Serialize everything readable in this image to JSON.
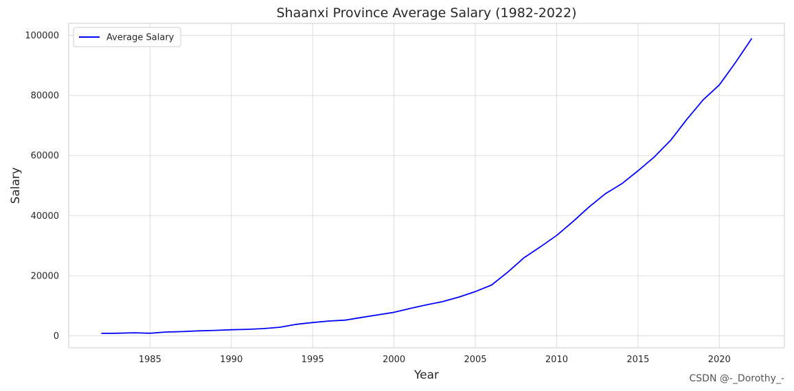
{
  "chart_data": {
    "type": "line",
    "title": "Shaanxi Province Average Salary (1982-2022)",
    "xlabel": "Year",
    "ylabel": "Salary",
    "xlim": [
      1980.0,
      2024.0
    ],
    "ylim": [
      -4000,
      104000
    ],
    "xticks": [
      1985,
      1990,
      1995,
      2000,
      2005,
      2010,
      2015,
      2020
    ],
    "yticks": [
      0,
      20000,
      40000,
      60000,
      80000,
      100000
    ],
    "grid": true,
    "legend_position": "top-left",
    "series": [
      {
        "name": "Average Salary",
        "color": "#0000ff",
        "x": [
          1982,
          1983,
          1984,
          1985,
          1986,
          1987,
          1988,
          1989,
          1990,
          1991,
          1992,
          1993,
          1994,
          1995,
          1996,
          1997,
          1998,
          1999,
          2000,
          2001,
          2002,
          2003,
          2004,
          2005,
          2006,
          2007,
          2008,
          2009,
          2010,
          2011,
          2012,
          2013,
          2014,
          2015,
          2016,
          2017,
          2018,
          2019,
          2020,
          2021,
          2022
        ],
        "y": [
          800,
          850,
          1000,
          850,
          1250,
          1400,
          1650,
          1800,
          2000,
          2150,
          2400,
          2850,
          3800,
          4400,
          4900,
          5200,
          6100,
          6950,
          7800,
          9100,
          10300,
          11400,
          12900,
          14700,
          16900,
          21200,
          26000,
          29600,
          33400,
          38000,
          42900,
          47300,
          50600,
          54900,
          59500,
          65000,
          72000,
          78500,
          83500,
          91000,
          99000
        ]
      }
    ]
  },
  "watermark": "CSDN @-_Dorothy_-"
}
